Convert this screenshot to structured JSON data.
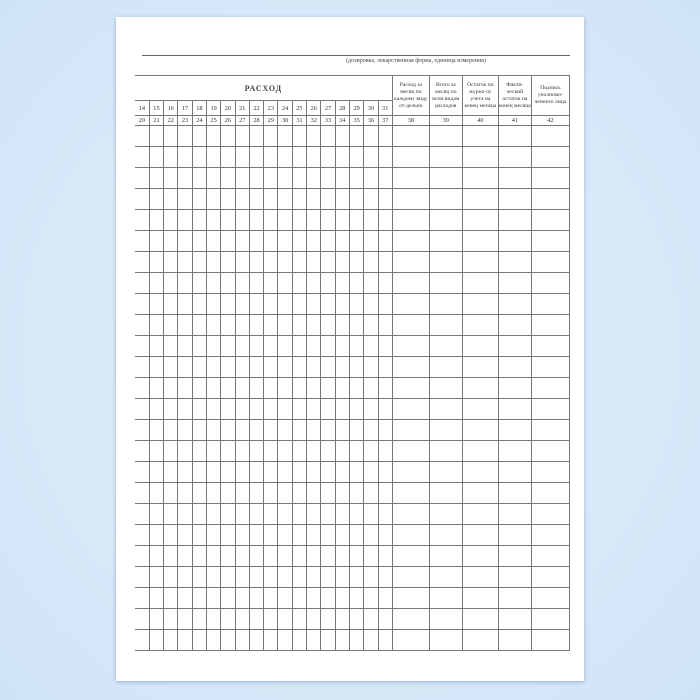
{
  "form": {
    "caption": "(дозировка, лекарственная форма, единица измерения)",
    "section_title": "РАСХОД",
    "day_columns": [
      "14",
      "15",
      "16",
      "17",
      "18",
      "19",
      "20",
      "21",
      "22",
      "23",
      "24",
      "25",
      "26",
      "27",
      "28",
      "29",
      "30",
      "31"
    ],
    "day_column_numbers": [
      "20",
      "21",
      "22",
      "23",
      "24",
      "25",
      "26",
      "27",
      "28",
      "29",
      "30",
      "31",
      "32",
      "33",
      "34",
      "35",
      "36",
      "37"
    ],
    "right_columns": [
      {
        "label": "Расход за месяц по каждому виду от-дельно",
        "number": "38"
      },
      {
        "label": "Всего за месяц по всем видам расходов",
        "number": "39"
      },
      {
        "label": "Остаток по журна-лу учета на конец месяца",
        "number": "40"
      },
      {
        "label": "Факти-ческий остаток на конец месяца",
        "number": "41"
      },
      {
        "label": "Подпись уполномо-ченного лица",
        "number": "42"
      }
    ],
    "colors": {
      "background": "#d8e8f8",
      "page": "#ffffff",
      "lines": "#777777"
    }
  }
}
